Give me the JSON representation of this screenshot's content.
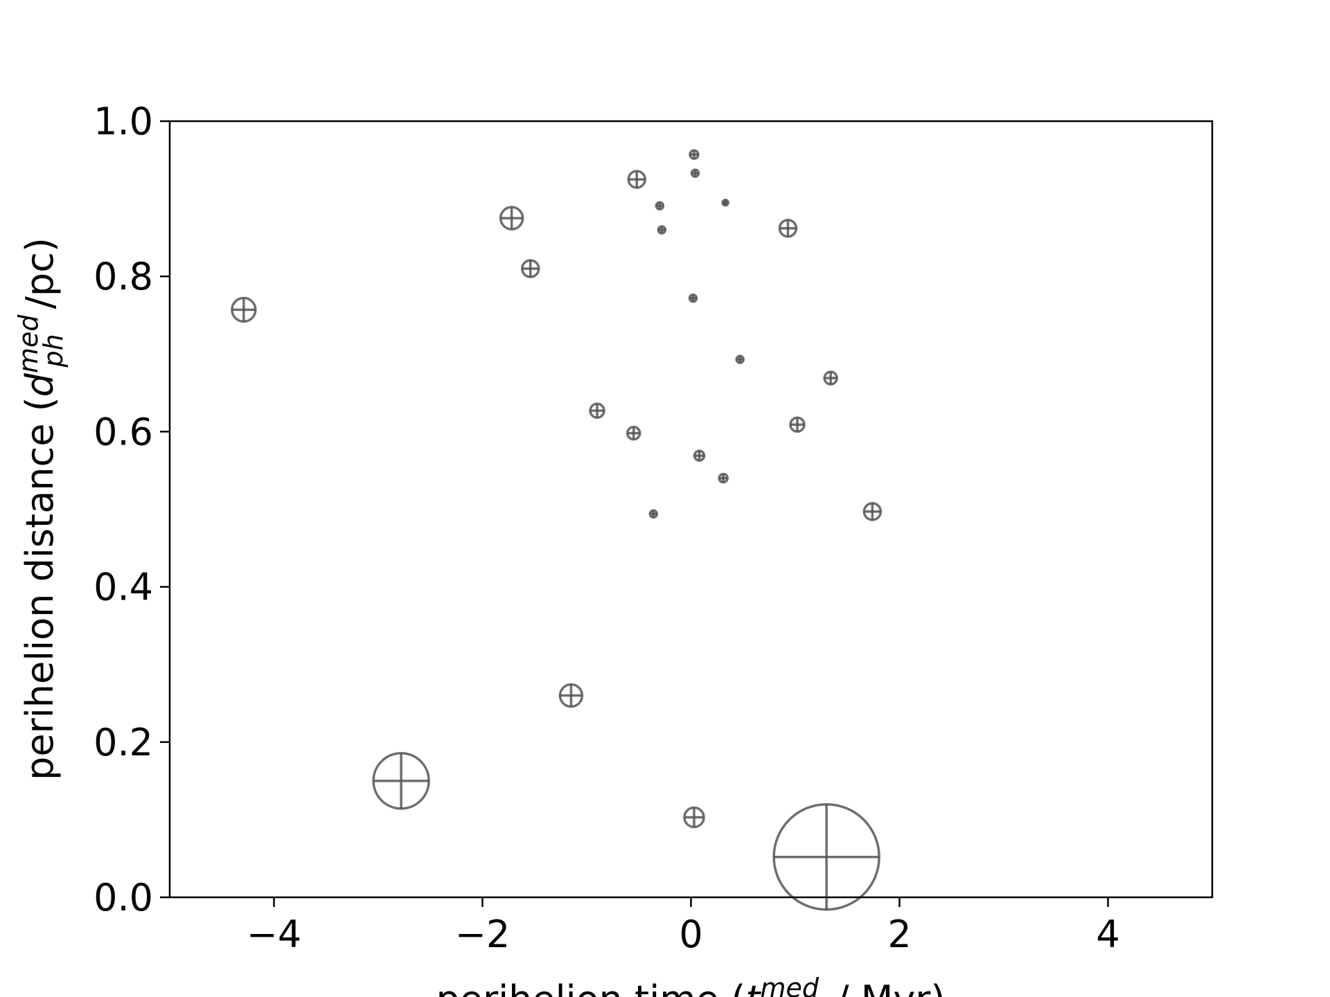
{
  "chart_data": {
    "type": "scatter",
    "title": "",
    "xlabel": {
      "pre": "perihelion time (",
      "var": "t",
      "sub": "ph",
      "sup": "med",
      "post": " / Myr)"
    },
    "ylabel": {
      "pre": "perihelion distance (",
      "var": "d",
      "sub": "ph",
      "sup": "med",
      "post": "/pc)"
    },
    "xlim": [
      -5,
      5
    ],
    "ylim": [
      0,
      1
    ],
    "x_ticks": [
      -4,
      -2,
      0,
      2,
      4
    ],
    "x_tick_labels": [
      "−4",
      "−2",
      "0",
      "2",
      "4"
    ],
    "y_ticks": [
      0.0,
      0.2,
      0.4,
      0.6,
      0.8,
      1.0
    ],
    "y_tick_labels": [
      "0.0",
      "0.2",
      "0.4",
      "0.6",
      "0.8",
      "1.0"
    ],
    "grid": false,
    "marker_color": "#555555",
    "marker_style": "circle with cross, size proportional to uncertainty",
    "points": [
      {
        "x": 0.03,
        "y": 0.957,
        "size": 6
      },
      {
        "x": 0.04,
        "y": 0.933,
        "size": 5
      },
      {
        "x": -0.52,
        "y": 0.925,
        "size": 12
      },
      {
        "x": -0.3,
        "y": 0.891,
        "size": 5
      },
      {
        "x": 0.33,
        "y": 0.895,
        "size": 4
      },
      {
        "x": -1.72,
        "y": 0.875,
        "size": 16
      },
      {
        "x": -0.28,
        "y": 0.86,
        "size": 5
      },
      {
        "x": 0.93,
        "y": 0.862,
        "size": 12
      },
      {
        "x": -1.54,
        "y": 0.81,
        "size": 12
      },
      {
        "x": -4.29,
        "y": 0.757,
        "size": 17
      },
      {
        "x": 0.02,
        "y": 0.772,
        "size": 5
      },
      {
        "x": 0.47,
        "y": 0.693,
        "size": 5
      },
      {
        "x": 1.34,
        "y": 0.669,
        "size": 9
      },
      {
        "x": -0.9,
        "y": 0.627,
        "size": 10
      },
      {
        "x": 1.02,
        "y": 0.609,
        "size": 10
      },
      {
        "x": -0.55,
        "y": 0.598,
        "size": 9
      },
      {
        "x": 0.08,
        "y": 0.569,
        "size": 7
      },
      {
        "x": 0.31,
        "y": 0.54,
        "size": 6
      },
      {
        "x": -0.36,
        "y": 0.494,
        "size": 5
      },
      {
        "x": 1.74,
        "y": 0.497,
        "size": 12
      },
      {
        "x": -1.15,
        "y": 0.26,
        "size": 16
      },
      {
        "x": -2.78,
        "y": 0.15,
        "size": 40
      },
      {
        "x": 0.03,
        "y": 0.103,
        "size": 14
      },
      {
        "x": 1.3,
        "y": 0.052,
        "size": 76
      }
    ]
  }
}
